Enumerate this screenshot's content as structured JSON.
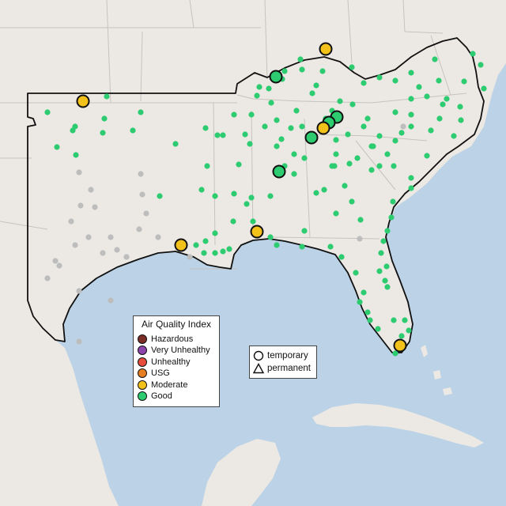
{
  "map": {
    "colors": {
      "water": "#bcd2e6",
      "land": "#ece9e4",
      "state_line": "#c6c3be",
      "region_outline": "#111111",
      "good": "#2ecc71",
      "moderate": "#f2c21b",
      "usg": "#e67e22",
      "unhealthy": "#e74c3c",
      "very_unhealthy": "#8e44ad",
      "hazardous": "#7b2d26",
      "no_data": "#bdbdbd"
    }
  },
  "aqi_legend": {
    "title": "Air Quality Index",
    "items": [
      {
        "label": "Hazardous",
        "color": "#7b2d26"
      },
      {
        "label": "Very Unhealthy",
        "color": "#8e44ad"
      },
      {
        "label": "Unhealthy",
        "color": "#e74c3c"
      },
      {
        "label": "USG",
        "color": "#e67e22"
      },
      {
        "label": "Moderate",
        "color": "#f2c21b"
      },
      {
        "label": "Good",
        "color": "#2ecc71"
      }
    ]
  },
  "type_legend": {
    "items": [
      {
        "label": "temporary",
        "shape": "circle-icon"
      },
      {
        "label": "permanent",
        "shape": "triangle-icon"
      }
    ]
  }
}
